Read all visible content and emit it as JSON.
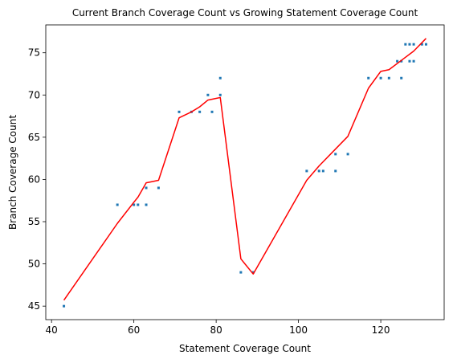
{
  "chart_data": {
    "type": "scatter",
    "title": "Current Branch Coverage Count vs Growing Statement Coverage Count",
    "xlabel": "Statement Coverage Count",
    "ylabel": "Branch Coverage Count",
    "xlim": [
      38.6,
      135.4
    ],
    "ylim": [
      43.4,
      78.3
    ],
    "xticks": [
      40,
      60,
      80,
      100,
      120
    ],
    "yticks": [
      45,
      50,
      55,
      60,
      65,
      70,
      75
    ],
    "grid": false,
    "scatter_color": "#1f77b4",
    "line_color": "#ff0000",
    "series": [
      {
        "type": "scatter",
        "x": [
          43,
          56,
          60,
          61,
          63,
          63,
          66,
          71,
          74,
          76,
          78,
          79,
          81,
          81,
          86,
          89,
          102,
          105,
          106,
          109,
          109,
          112,
          117,
          120,
          122,
          124,
          125,
          125,
          126,
          127,
          127,
          128,
          128,
          130,
          131
        ],
        "y": [
          45,
          57,
          57,
          57,
          57,
          59,
          59,
          68,
          68,
          68,
          70,
          68,
          70,
          72,
          49,
          49,
          61,
          61,
          61,
          61,
          63,
          63,
          72,
          72,
          72,
          74,
          72,
          74,
          76,
          76,
          74,
          76,
          74,
          76,
          76
        ]
      },
      {
        "type": "line",
        "x": [
          43,
          56,
          60,
          61,
          63,
          64,
          66,
          71,
          74,
          76,
          78,
          80,
          81,
          86,
          87,
          89,
          102,
          105,
          109,
          112,
          117,
          120,
          122,
          125,
          128,
          131
        ],
        "y": [
          45.7,
          54.8,
          57.3,
          57.9,
          59.6,
          59.7,
          59.9,
          67.3,
          68.0,
          68.6,
          69.4,
          69.6,
          69.7,
          50.6,
          50.0,
          48.8,
          59.9,
          61.6,
          63.6,
          65.1,
          70.8,
          72.8,
          73.0,
          74.1,
          75.2,
          76.7
        ]
      }
    ]
  }
}
